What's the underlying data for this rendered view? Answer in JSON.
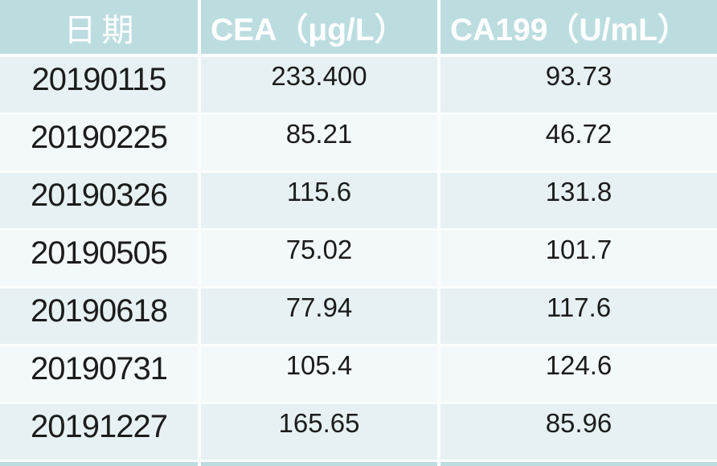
{
  "chart_data": {
    "type": "table",
    "title": "",
    "columns": [
      "日期",
      "CEA（μg/L）",
      "CA199（U/mL）"
    ],
    "rows": [
      [
        "20190115",
        "233.400",
        "93.73"
      ],
      [
        "20190225",
        "85.21",
        "46.72"
      ],
      [
        "20190326",
        "115.6",
        "131.8"
      ],
      [
        "20190505",
        "75.02",
        "101.7"
      ],
      [
        "20190618",
        "77.94",
        "117.6"
      ],
      [
        "20190731",
        "105.4",
        "124.6"
      ],
      [
        "20191227",
        "165.65",
        "85.96"
      ]
    ],
    "layout_hints": {
      "header_position": "top",
      "banded_rows": true,
      "first_data_row_shaded": true,
      "grid": "white cell dividers"
    }
  },
  "colors": {
    "header_bg": "#bcdde0",
    "row_odd_bg": "#e7f1f3",
    "row_even_bg": "#f3f9fa",
    "divider": "#fbfdfd",
    "header_text": "#ffffff",
    "body_text": "#1c1c1c"
  }
}
